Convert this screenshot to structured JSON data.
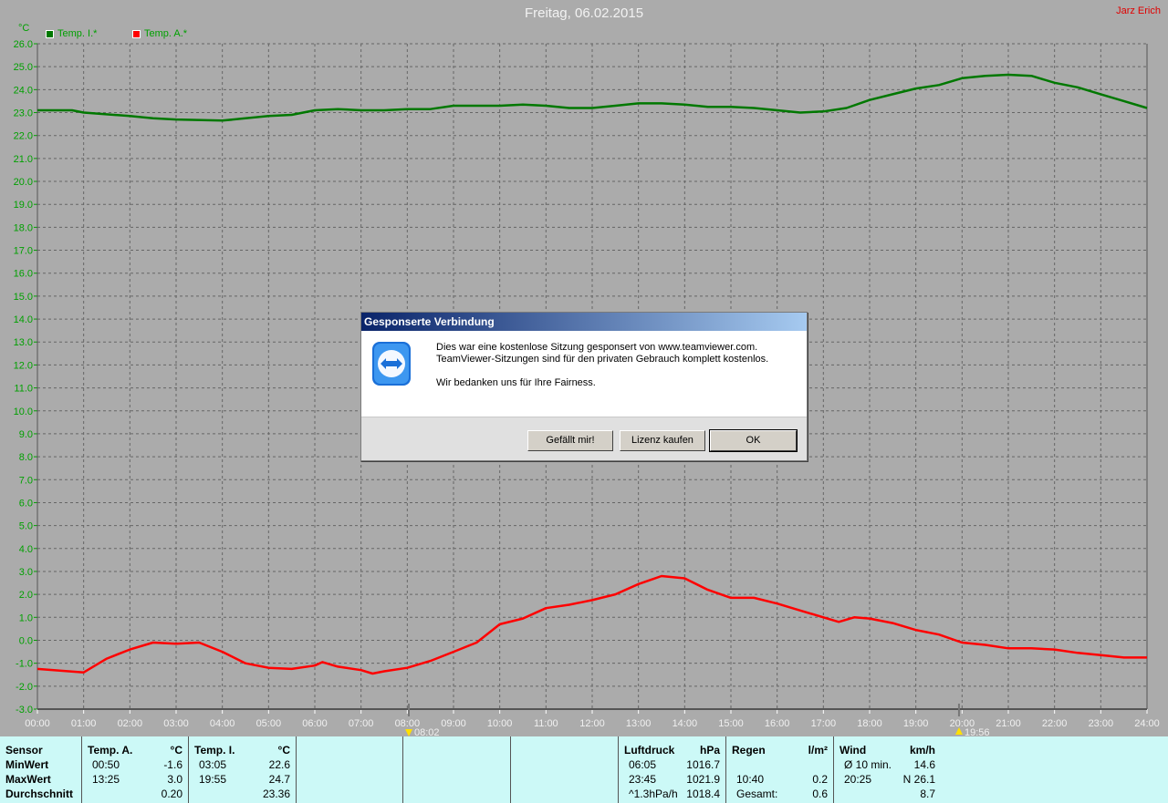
{
  "header": {
    "title": "Freitag, 06.02.2015",
    "author": "Jarz Erich"
  },
  "colors": {
    "inside": "#007800",
    "outside": "#ff0000",
    "axis_text": "#00a000",
    "table_bg": "#ccf9f7"
  },
  "chart_data": {
    "type": "line",
    "title": "Freitag, 06.02.2015",
    "ylabel": "°C",
    "ylim": [
      -3.0,
      26.0
    ],
    "xlim": [
      "00:00",
      "24:00"
    ],
    "grid": true,
    "legend_placement": "top-left",
    "y_ticks": [
      "26.0",
      "25.0",
      "24.0",
      "23.0",
      "22.0",
      "21.0",
      "20.0",
      "19.0",
      "18.0",
      "17.0",
      "16.0",
      "15.0",
      "14.0",
      "13.0",
      "12.0",
      "11.0",
      "10.0",
      "9.0",
      "8.0",
      "7.0",
      "6.0",
      "5.0",
      "4.0",
      "3.0",
      "2.0",
      "1.0",
      "0.0",
      "-1.0",
      "-2.0",
      "-3.0"
    ],
    "x_ticks": [
      "00:00",
      "01:00",
      "02:00",
      "03:00",
      "04:00",
      "05:00",
      "06:00",
      "07:00",
      "08:00",
      "09:00",
      "10:00",
      "11:00",
      "12:00",
      "13:00",
      "14:00",
      "15:00",
      "16:00",
      "17:00",
      "18:00",
      "19:00",
      "20:00",
      "21:00",
      "22:00",
      "23:00",
      "24:00"
    ],
    "markers": [
      {
        "label": "08:02",
        "time": "08:02",
        "icon": "sunrise-arrow-icon"
      },
      {
        "label": "19:56",
        "time": "19:56",
        "icon": "sunset-arrow-icon"
      }
    ],
    "series": [
      {
        "name": "Temp. I.*",
        "color": "#007800",
        "x": [
          "00:00",
          "00:45",
          "01:00",
          "02:00",
          "02:30",
          "03:00",
          "04:00",
          "04:30",
          "05:00",
          "05:30",
          "06:00",
          "06:30",
          "07:00",
          "07:30",
          "08:00",
          "08:30",
          "09:00",
          "09:30",
          "10:00",
          "10:30",
          "11:00",
          "11:30",
          "12:00",
          "12:30",
          "13:00",
          "13:30",
          "14:00",
          "14:30",
          "15:00",
          "15:30",
          "16:00",
          "16:30",
          "17:00",
          "17:30",
          "18:00",
          "18:30",
          "19:00",
          "19:30",
          "20:00",
          "20:30",
          "21:00",
          "21:30",
          "22:00",
          "22:30",
          "23:00",
          "23:30",
          "24:00"
        ],
        "values": [
          23.1,
          23.1,
          23.0,
          22.85,
          22.75,
          22.7,
          22.65,
          22.75,
          22.85,
          22.9,
          23.1,
          23.15,
          23.1,
          23.1,
          23.15,
          23.15,
          23.3,
          23.3,
          23.3,
          23.35,
          23.3,
          23.2,
          23.2,
          23.3,
          23.4,
          23.4,
          23.35,
          23.25,
          23.25,
          23.2,
          23.1,
          23.0,
          23.05,
          23.2,
          23.55,
          23.8,
          24.05,
          24.2,
          24.5,
          24.6,
          24.65,
          24.6,
          24.3,
          24.1,
          23.8,
          23.5,
          23.2
        ]
      },
      {
        "name": "Temp. A.*",
        "color": "#ff0000",
        "x": [
          "00:00",
          "01:00",
          "01:30",
          "02:00",
          "02:30",
          "03:00",
          "03:30",
          "04:00",
          "04:30",
          "05:00",
          "05:30",
          "06:00",
          "06:10",
          "06:30",
          "07:00",
          "07:15",
          "07:30",
          "08:00",
          "08:30",
          "09:00",
          "09:30",
          "10:00",
          "10:30",
          "11:00",
          "11:30",
          "12:00",
          "12:30",
          "13:00",
          "13:30",
          "14:00",
          "14:30",
          "15:00",
          "15:30",
          "16:00",
          "16:30",
          "17:00",
          "17:20",
          "17:40",
          "18:00",
          "18:30",
          "19:00",
          "19:30",
          "20:00",
          "20:30",
          "21:00",
          "21:30",
          "22:00",
          "22:30",
          "23:00",
          "23:30",
          "24:00"
        ],
        "values": [
          -1.25,
          -1.4,
          -0.8,
          -0.4,
          -0.1,
          -0.15,
          -0.1,
          -0.5,
          -1.0,
          -1.2,
          -1.25,
          -1.1,
          -0.95,
          -1.15,
          -1.3,
          -1.45,
          -1.35,
          -1.2,
          -0.9,
          -0.5,
          -0.1,
          0.7,
          0.95,
          1.4,
          1.55,
          1.75,
          2.0,
          2.45,
          2.8,
          2.7,
          2.2,
          1.85,
          1.85,
          1.6,
          1.3,
          1.0,
          0.8,
          1.0,
          0.95,
          0.75,
          0.45,
          0.25,
          -0.1,
          -0.2,
          -0.35,
          -0.35,
          -0.4,
          -0.55,
          -0.65,
          -0.75,
          -0.75
        ]
      }
    ]
  },
  "table": {
    "columns": [
      {
        "rows": [
          [
            "Sensor",
            ""
          ],
          [
            "MinWert",
            ""
          ],
          [
            "MaxWert",
            ""
          ],
          [
            "Durchschnitt",
            ""
          ]
        ]
      },
      {
        "rows": [
          [
            "Temp. A.",
            "°C"
          ],
          [
            "00:50",
            "-1.6"
          ],
          [
            "13:25",
            "3.0"
          ],
          [
            "",
            "0.20"
          ]
        ]
      },
      {
        "rows": [
          [
            "Temp. I.",
            "°C"
          ],
          [
            "03:05",
            "22.6"
          ],
          [
            "19:55",
            "24.7"
          ],
          [
            "",
            "23.36"
          ]
        ]
      },
      {
        "rows": []
      },
      {
        "rows": []
      },
      {
        "rows": []
      },
      {
        "rows": [
          [
            "Luftdruck",
            "hPa"
          ],
          [
            "06:05",
            "1016.7"
          ],
          [
            "23:45",
            "1021.9"
          ],
          [
            "^1.3hPa/h",
            "1018.4"
          ]
        ]
      },
      {
        "rows": [
          [
            "Regen",
            "l/m²"
          ],
          [
            "",
            ""
          ],
          [
            "10:40",
            "0.2"
          ],
          [
            "Gesamt:",
            "0.6"
          ]
        ]
      },
      {
        "rows": [
          [
            "Wind",
            "km/h"
          ],
          [
            "Ø 10 min.",
            "14.6"
          ],
          [
            "20:25",
            "N 26.1"
          ],
          [
            "",
            "8.7"
          ]
        ]
      }
    ]
  },
  "dialog": {
    "title": "Gesponserte Verbindung",
    "line1": "Dies war eine kostenlose Sitzung gesponsert von www.teamviewer.com.",
    "line2": "TeamViewer-Sitzungen sind für den privaten Gebrauch komplett kostenlos.",
    "line3": "Wir bedanken uns für Ihre Fairness.",
    "buttons": [
      "Gefällt mir!",
      "Lizenz kaufen",
      "OK"
    ]
  }
}
